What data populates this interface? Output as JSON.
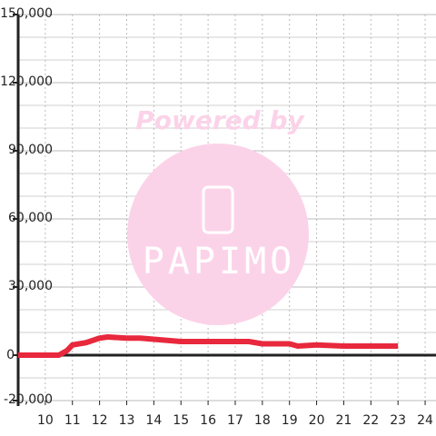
{
  "chart_data": {
    "type": "line",
    "x": [
      9,
      10,
      10.5,
      10.8,
      11,
      11.5,
      12,
      12.3,
      13,
      13.5,
      14,
      14.5,
      15,
      16,
      17,
      17.5,
      18,
      19,
      19.3,
      20,
      21,
      22,
      23
    ],
    "values": [
      0,
      0,
      0,
      2000,
      4500,
      5500,
      7500,
      8000,
      7500,
      7500,
      7000,
      6500,
      6000,
      6000,
      6000,
      6000,
      5000,
      5000,
      4000,
      4500,
      4000,
      4000,
      4000
    ],
    "color": "#e8283c",
    "xlim": [
      9,
      24.4
    ],
    "xticks": [
      10,
      11,
      12,
      13,
      14,
      15,
      16,
      17,
      18,
      19,
      20,
      21,
      22,
      23,
      24
    ],
    "ylim": [
      -20000,
      150000
    ],
    "yticks": [
      {
        "value": -20000,
        "label": "-20,000"
      },
      0,
      {
        "value": 30000,
        "label": "30,000"
      },
      {
        "value": 60000,
        "label": "60,000"
      },
      {
        "value": 90000,
        "label": "90,000"
      },
      {
        "value": 120000,
        "label": "120,000"
      },
      {
        "value": 150000,
        "label": "150,000"
      }
    ],
    "y_minor_ticks": [
      -10000,
      10000,
      20000,
      40000,
      50000,
      70000,
      80000,
      100000,
      110000,
      130000,
      140000
    ],
    "grid": true,
    "watermark": {
      "text": "Powered by",
      "logo": "PAPIMO"
    }
  }
}
